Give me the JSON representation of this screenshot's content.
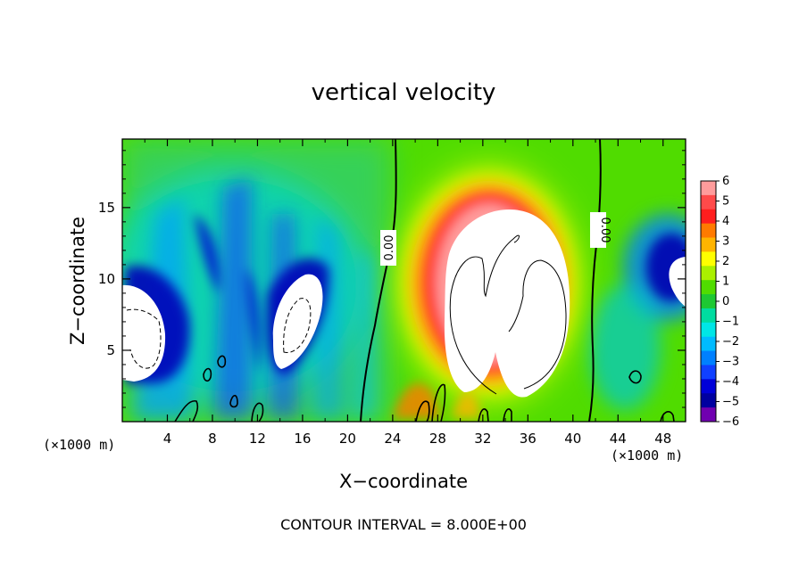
{
  "chart_data": {
    "type": "heatmap",
    "title": "vertical velocity",
    "xlabel": "X−coordinate",
    "ylabel": "Z−coordinate",
    "x_unit_left": "(×1000 m)",
    "x_unit_right": "(×1000 m)",
    "xlim": [
      0,
      50
    ],
    "ylim": [
      0,
      19.8
    ],
    "xticks": [
      4,
      8,
      12,
      16,
      20,
      24,
      28,
      32,
      36,
      40,
      44,
      48
    ],
    "yticks": [
      5,
      10,
      15
    ],
    "footer": "CONTOUR INTERVAL = 8.000E+00",
    "contour_labels": [
      "0.00",
      "0.00"
    ],
    "colorbar": {
      "levels": [
        6,
        5,
        4,
        3,
        2,
        1,
        0,
        -1,
        -2,
        -3,
        -4,
        -5,
        -6
      ],
      "colors": [
        "#ff9c9c",
        "#ff4a4a",
        "#ff1e1e",
        "#ff7a00",
        "#ffb400",
        "#ffff00",
        "#aaf000",
        "#50dc00",
        "#1ec832",
        "#00dca0",
        "#00e6e6",
        "#00bbff",
        "#0080ff",
        "#1040ff",
        "#0000d8",
        "#0000a0",
        "#7000b0"
      ]
    },
    "features": [
      {
        "name": "updraft core",
        "x": 32.5,
        "z": 9.5,
        "sign": "positive",
        "level": ">6"
      },
      {
        "name": "downdraft core",
        "x": 2.5,
        "z": 6.0,
        "sign": "negative",
        "level": "<-6"
      },
      {
        "name": "downdraft core",
        "x": 17.0,
        "z": 7.0,
        "sign": "negative",
        "level": "<-6"
      },
      {
        "name": "downdraft core",
        "x": 49.0,
        "z": 10.0,
        "sign": "negative",
        "level": "<-6"
      }
    ]
  }
}
